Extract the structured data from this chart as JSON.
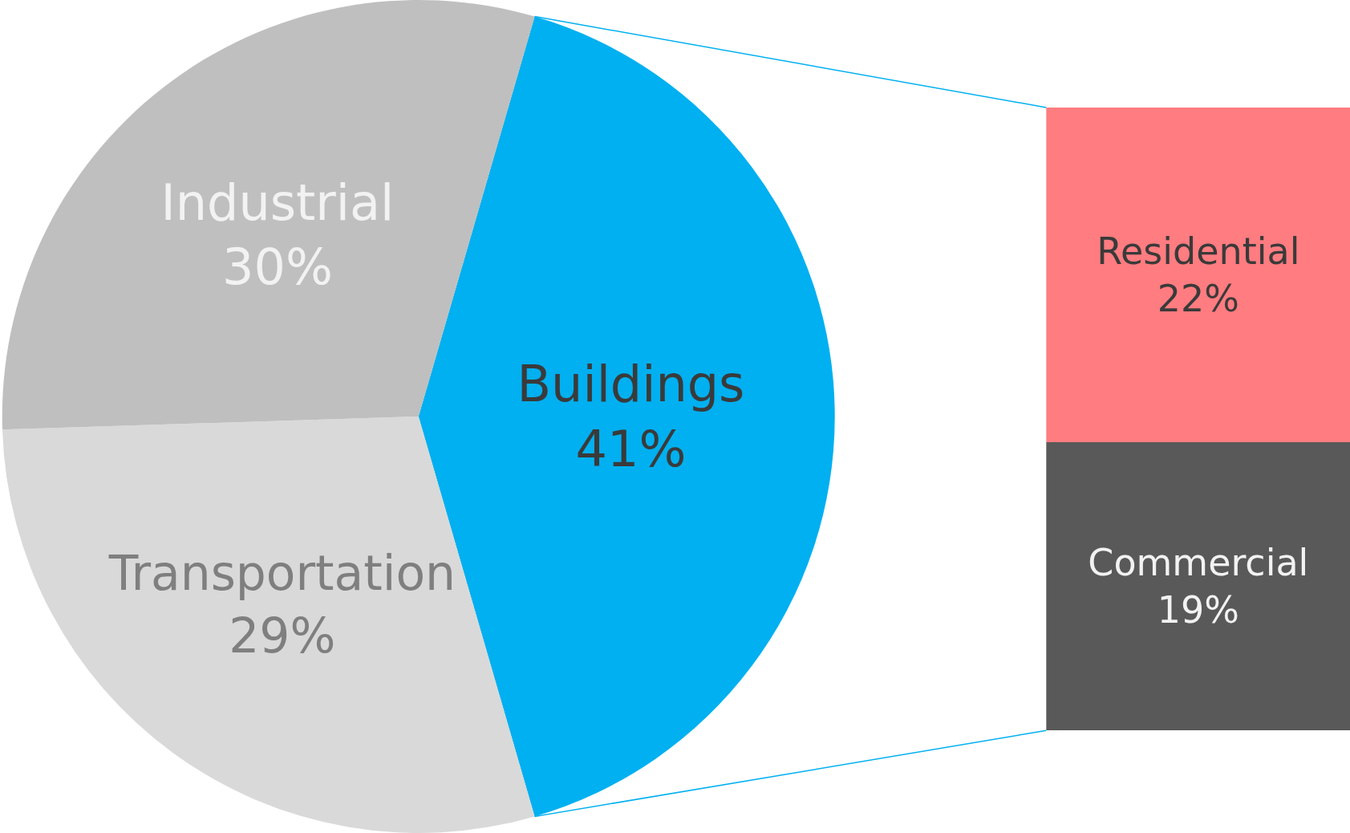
{
  "chart_data": [
    {
      "type": "pie",
      "categories": [
        "Buildings",
        "Transportation",
        "Industrial"
      ],
      "values": [
        41,
        29,
        30
      ],
      "colors": [
        "#00b0f0",
        "#d9d9d9",
        "#bfbfbf"
      ],
      "value_labels": [
        "41%",
        "29%",
        "30%"
      ]
    },
    {
      "type": "bar",
      "stacked": true,
      "categories": [
        null
      ],
      "series": [
        {
          "name": "Commercial",
          "color": "#595959",
          "values": [
            19
          ],
          "value_labels": [
            "19%"
          ]
        },
        {
          "name": "Residential",
          "color": "#ff7c80",
          "values": [
            22
          ],
          "value_labels": [
            "22%"
          ]
        }
      ]
    }
  ]
}
